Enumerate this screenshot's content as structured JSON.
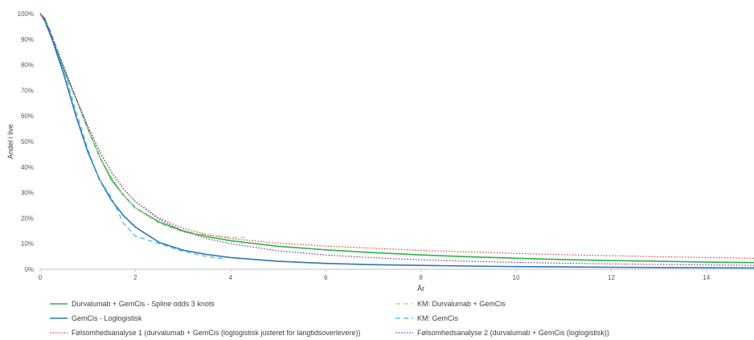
{
  "chart_data": {
    "type": "line",
    "xlabel": "År",
    "ylabel": "Andel i live",
    "xlim": [
      0,
      15
    ],
    "ylim": [
      0,
      100
    ],
    "xticks": [
      0,
      2,
      4,
      6,
      8,
      10,
      12,
      14
    ],
    "yticks": [
      0,
      10,
      20,
      30,
      40,
      50,
      60,
      70,
      80,
      90,
      100
    ],
    "ytick_labels": [
      "0%",
      "10%",
      "20%",
      "30%",
      "40%",
      "50%",
      "60%",
      "70%",
      "80%",
      "90%",
      "100%"
    ],
    "grid": false,
    "legend": "bottom",
    "series": [
      {
        "name": "Durvalumab + GemCis - Spline odds 3 knots",
        "color": "#2DB34A",
        "style": "solid",
        "x": [
          0,
          0.1,
          0.25,
          0.5,
          0.75,
          1,
          1.25,
          1.5,
          1.75,
          2,
          2.5,
          3,
          3.5,
          4,
          5,
          6,
          7,
          8,
          9,
          10,
          11,
          12,
          13,
          14,
          15
        ],
        "y": [
          100,
          98,
          90,
          78,
          67,
          55,
          44,
          35,
          29,
          24,
          18.5,
          15,
          12.8,
          11.2,
          9,
          7.6,
          6.5,
          5.6,
          4.9,
          4.3,
          3.8,
          3.4,
          3.1,
          2.8,
          2.6
        ]
      },
      {
        "name": "KM: Durvalumab + GemCis",
        "color": "#A9D18E",
        "style": "dashed",
        "x": [
          0,
          0.2,
          0.5,
          0.75,
          1,
          1.25,
          1.5,
          1.75,
          2,
          2.5,
          3,
          3.5,
          4,
          4.3
        ],
        "y": [
          100,
          94,
          79,
          67,
          55,
          44,
          36,
          29,
          24,
          18,
          14.5,
          13.5,
          12.5,
          12.5
        ]
      },
      {
        "name": "GemCis - Loglogistisk",
        "color": "#2E75B6",
        "style": "solid",
        "x": [
          0,
          0.1,
          0.25,
          0.5,
          0.75,
          1,
          1.25,
          1.5,
          1.75,
          2,
          2.5,
          3,
          3.5,
          4,
          5,
          6,
          7,
          8,
          9,
          10,
          11,
          12,
          13,
          14,
          15
        ],
        "y": [
          100,
          97,
          90,
          76,
          60,
          46,
          35,
          27,
          21,
          16.5,
          10.5,
          7.5,
          5.8,
          4.6,
          3.1,
          2.3,
          1.8,
          1.5,
          1.25,
          1.05,
          0.9,
          0.8,
          0.7,
          0.6,
          0.55
        ]
      },
      {
        "name": "KM: GemCis",
        "color": "#41B6E6",
        "style": "dashed",
        "x": [
          0,
          0.2,
          0.5,
          0.75,
          1,
          1.25,
          1.5,
          1.75,
          2,
          2.5,
          3,
          3.5,
          3.9
        ],
        "y": [
          100,
          94,
          78,
          62,
          47,
          35,
          28,
          18,
          13,
          10,
          7,
          5,
          4
        ]
      },
      {
        "name": "Følsomhedsanalyse 1 (durvalumab + GemCis (loglogistisk justeret for langtidsoverlevere))",
        "color": "#E03C31",
        "style": "dotted",
        "x": [
          0,
          0.1,
          0.25,
          0.5,
          0.75,
          1,
          1.25,
          1.5,
          1.75,
          2,
          2.5,
          3,
          3.5,
          4,
          5,
          6,
          7,
          8,
          9,
          10,
          11,
          12,
          13,
          14,
          15
        ],
        "y": [
          100,
          98,
          91,
          79,
          67,
          56,
          46,
          38,
          31.5,
          26.5,
          20,
          16,
          13.6,
          12,
          10.2,
          9.1,
          8.2,
          7.4,
          6.8,
          6.2,
          5.7,
          5.3,
          4.9,
          4.6,
          4.3
        ]
      },
      {
        "name": "Følsomhedsanalyse 2 (durvalumab + GemCis (loglogistisk))",
        "color": "#7030A0",
        "style": "dotted",
        "x": [
          0,
          0.1,
          0.25,
          0.5,
          0.75,
          1,
          1.25,
          1.5,
          1.75,
          2,
          2.5,
          3,
          3.5,
          4,
          5,
          6,
          7,
          8,
          9,
          10,
          11,
          12,
          13,
          14,
          15
        ],
        "y": [
          100,
          98,
          91,
          79,
          67,
          56,
          46,
          38,
          31.5,
          26.5,
          19.5,
          15,
          12,
          10,
          7.2,
          5.6,
          4.5,
          3.7,
          3.1,
          2.7,
          2.35,
          2.1,
          1.9,
          1.7,
          1.55
        ]
      }
    ]
  }
}
